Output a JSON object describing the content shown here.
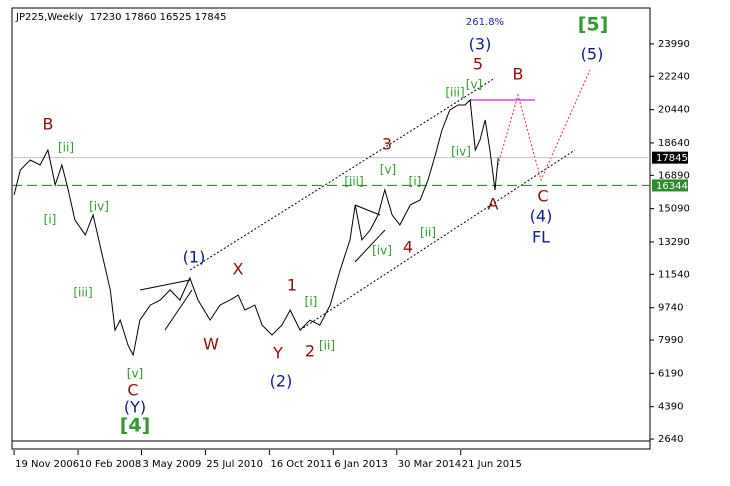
{
  "chart_data": {
    "type": "line",
    "title": "JP225,Weekly  17230 17860 16525 17845",
    "x": [
      2006.88,
      2007.0,
      2007.19,
      2007.38,
      2007.53,
      2007.67,
      2007.8,
      2007.92,
      2008.05,
      2008.25,
      2008.4,
      2008.53,
      2008.73,
      2008.82,
      2008.92,
      2009.07,
      2009.17,
      2009.3,
      2009.5,
      2009.69,
      2009.88,
      2010.07,
      2010.26,
      2010.42,
      2010.65,
      2010.84,
      2011.03,
      2011.19,
      2011.32,
      2011.51,
      2011.65,
      2011.84,
      2012.03,
      2012.19,
      2012.38,
      2012.57,
      2012.76,
      2012.96,
      2013.15,
      2013.34,
      2013.44,
      2013.57,
      2013.73,
      2013.88,
      2014.01,
      2014.15,
      2014.3,
      2014.5,
      2014.69,
      2014.84,
      2014.98,
      2015.11,
      2015.26,
      2015.42,
      2015.55,
      2015.65,
      2015.75,
      2015.84,
      2015.94,
      2016.03,
      2016.13,
      2016.19
    ],
    "series": [
      {
        "name": "JP225",
        "color": "#000000",
        "values": [
          15830,
          17180,
          17720,
          17450,
          18260,
          16370,
          17450,
          16100,
          14480,
          13670,
          14750,
          13130,
          10700,
          8530,
          9070,
          7720,
          7180,
          9070,
          9880,
          10150,
          10700,
          10150,
          11340,
          10150,
          9070,
          9880,
          10150,
          10420,
          9610,
          9880,
          8800,
          8260,
          8800,
          9610,
          8530,
          9070,
          8800,
          9880,
          11770,
          13400,
          15290,
          13400,
          13940,
          14750,
          16100,
          14750,
          14210,
          15290,
          15560,
          16640,
          17990,
          19340,
          20420,
          20690,
          20690,
          20960,
          18260,
          18800,
          19880,
          18260,
          16100,
          17845
        ]
      }
    ],
    "xlim": [
      2006.84,
      2019.11
    ],
    "ylim": [
      2050,
      25930
    ],
    "xticks": [
      {
        "value": 2006.88,
        "label": "19 Nov 2006"
      },
      {
        "value": 2008.11,
        "label": "10 Feb 2008"
      },
      {
        "value": 2009.33,
        "label": "3 May 2009"
      },
      {
        "value": 2010.56,
        "label": "25 Jul 2010"
      },
      {
        "value": 2011.79,
        "label": "16 Oct 2011"
      },
      {
        "value": 2013.02,
        "label": "6 Jan 2013"
      },
      {
        "value": 2014.24,
        "label": "30 Mar 2014"
      },
      {
        "value": 2015.47,
        "label": "21 Jun 2015"
      }
    ],
    "yticks": [
      23990,
      22240,
      20440,
      18640,
      16890,
      15090,
      13290,
      11540,
      9740,
      7990,
      6190,
      4390,
      2640
    ],
    "hlines": [
      {
        "value": 17845,
        "color": "#c0c0c0",
        "tag_color": "#000000"
      },
      {
        "value": 16344,
        "color": "#2e8b2e",
        "tag_color": "#2e8b2e"
      }
    ],
    "annotations": [
      "261.8%",
      "[5]",
      "(3)",
      "(5)",
      "5",
      "B",
      "[v]",
      "[iii]",
      "B",
      "[ii]",
      "3",
      "[iv]",
      "[v]",
      "[iii]",
      "[i]",
      "C",
      "A",
      "[i]",
      "[iv]",
      "(4)",
      "4",
      "[ii]",
      "FL",
      "[iv]",
      "X",
      "(1)",
      "1",
      "[iii]",
      "[i]",
      "W",
      "[ii]",
      "2",
      "Y",
      "[v]",
      "(2)",
      "C",
      "(Y)",
      "[4]"
    ]
  }
}
